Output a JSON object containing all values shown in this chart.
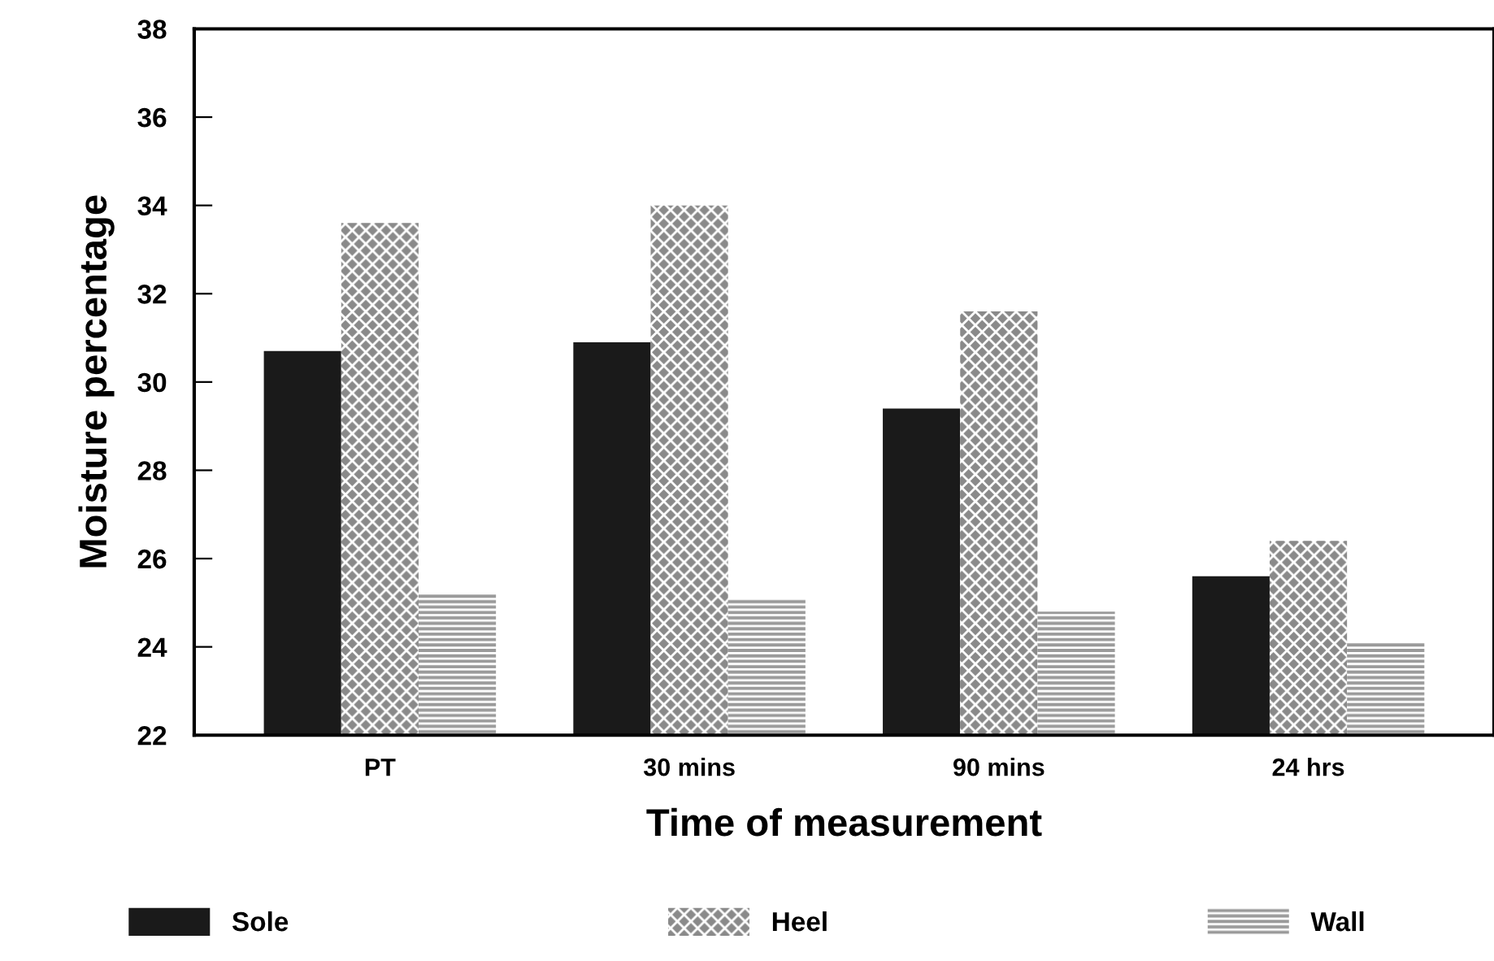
{
  "chart_data": {
    "type": "bar",
    "xlabel": "Time of measurement",
    "ylabel": "Moisture percentage",
    "categories": [
      "PT",
      "30 mins",
      "90 mins",
      "24 hrs"
    ],
    "series": [
      {
        "name": "Sole",
        "color": "#1a1a1a",
        "values": [
          30.7,
          30.9,
          29.4,
          25.6
        ]
      },
      {
        "name": "Heel",
        "color": "#8a8a8a",
        "values": [
          33.6,
          34.0,
          31.6,
          26.4
        ]
      },
      {
        "name": "Wall",
        "color": "#9a9a9a",
        "values": [
          25.2,
          25.1,
          24.8,
          24.1
        ]
      }
    ],
    "ylim": [
      22,
      38
    ],
    "yticks": [
      22,
      24,
      26,
      28,
      30,
      32,
      34,
      36,
      38
    ],
    "grid": false,
    "legend": "bottom"
  }
}
